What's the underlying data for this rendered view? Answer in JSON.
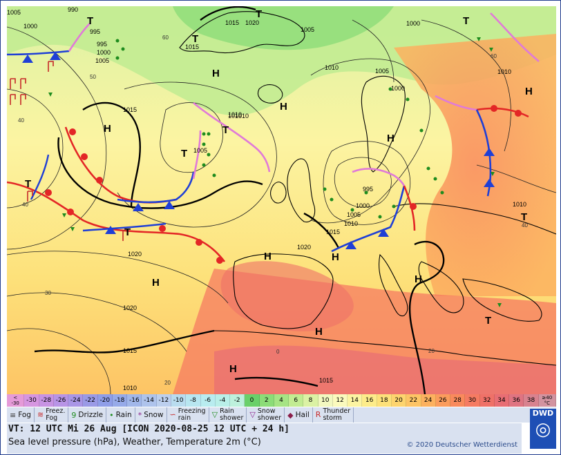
{
  "map": {
    "isobar_labels": [
      {
        "text": "1005"
      },
      {
        "text": "1000"
      },
      {
        "text": "995"
      },
      {
        "text": "990"
      },
      {
        "text": "995"
      },
      {
        "text": "1000"
      },
      {
        "text": "1005"
      },
      {
        "text": "1015"
      },
      {
        "text": "1020"
      },
      {
        "text": "1015"
      },
      {
        "text": "1005"
      },
      {
        "text": "1010"
      },
      {
        "text": "1005"
      },
      {
        "text": "1000"
      },
      {
        "text": "1010"
      },
      {
        "text": "1015"
      },
      {
        "text": "1010"
      },
      {
        "text": "1005"
      },
      {
        "text": "995"
      },
      {
        "text": "1000"
      },
      {
        "text": "1005"
      },
      {
        "text": "1010"
      },
      {
        "text": "1015"
      },
      {
        "text": "1020"
      },
      {
        "text": "1020"
      },
      {
        "text": "1020"
      },
      {
        "text": "1015"
      },
      {
        "text": "1010"
      },
      {
        "text": "1015"
      },
      {
        "text": "1010"
      },
      {
        "text": "1000"
      },
      {
        "text": "1010"
      },
      {
        "text": "1010"
      }
    ],
    "latlon_labels": [
      {
        "text": "40"
      },
      {
        "text": "50"
      },
      {
        "text": "60"
      },
      {
        "text": "40"
      },
      {
        "text": "30"
      },
      {
        "text": "20"
      },
      {
        "text": "0"
      },
      {
        "text": "20"
      },
      {
        "text": "40"
      },
      {
        "text": "60"
      }
    ],
    "high_labels": [
      "H",
      "H",
      "H",
      "H",
      "H",
      "H",
      "H",
      "H",
      "H",
      "H",
      "H"
    ],
    "low_labels": [
      "T",
      "T",
      "T",
      "T",
      "T",
      "T",
      "T",
      "T",
      "T",
      "T"
    ]
  },
  "legend": {
    "temperature_scale": [
      {
        "label": "<\n-30",
        "color": "#e59ad8"
      },
      {
        "label": "-30",
        "color": "#d696e0"
      },
      {
        "label": "-28",
        "color": "#c793e3"
      },
      {
        "label": "-26",
        "color": "#b894e6"
      },
      {
        "label": "-24",
        "color": "#a996e6"
      },
      {
        "label": "-22",
        "color": "#9a9ae6"
      },
      {
        "label": "-20",
        "color": "#8f9ee8"
      },
      {
        "label": "-18",
        "color": "#96aae9"
      },
      {
        "label": "-16",
        "color": "#a1b7ea"
      },
      {
        "label": "-14",
        "color": "#aec3ec"
      },
      {
        "label": "-12",
        "color": "#bccfee"
      },
      {
        "label": "-10",
        "color": "#b9dcef"
      },
      {
        "label": "-8",
        "color": "#b8e6f0"
      },
      {
        "label": "-6",
        "color": "#b8ecef"
      },
      {
        "label": "-4",
        "color": "#b9efe8"
      },
      {
        "label": "-2",
        "color": "#bdf0dc"
      },
      {
        "label": "0",
        "color": "#6ad06a"
      },
      {
        "label": "2",
        "color": "#8cdc78"
      },
      {
        "label": "4",
        "color": "#a6e484"
      },
      {
        "label": "6",
        "color": "#c2ec92"
      },
      {
        "label": "8",
        "color": "#dbf2a4"
      },
      {
        "label": "10",
        "color": "#f2f8c0"
      },
      {
        "label": "12",
        "color": "#fbfabd"
      },
      {
        "label": "14",
        "color": "#fcf4a2"
      },
      {
        "label": "16",
        "color": "#fdec8a"
      },
      {
        "label": "18",
        "color": "#fde17a"
      },
      {
        "label": "20",
        "color": "#fdd46e"
      },
      {
        "label": "22",
        "color": "#fdc465"
      },
      {
        "label": "24",
        "color": "#fcb15f"
      },
      {
        "label": "26",
        "color": "#fb9c5c"
      },
      {
        "label": "28",
        "color": "#f98a5c"
      },
      {
        "label": "30",
        "color": "#f57b62"
      },
      {
        "label": "32",
        "color": "#ef7168"
      },
      {
        "label": "34",
        "color": "#e86e74"
      },
      {
        "label": "36",
        "color": "#df7482"
      },
      {
        "label": "38",
        "color": "#d8828f"
      },
      {
        "label": "≥40\n°C",
        "color": "#d293a0"
      }
    ],
    "weather_keys": [
      {
        "symbol": "≡",
        "label": "Fog",
        "color": "#333333"
      },
      {
        "symbol": "≋",
        "label": "Freez.\nFog",
        "color": "#c62828"
      },
      {
        "symbol": "9",
        "label": "Drizzle",
        "color": "#1e8c1e"
      },
      {
        "symbol": "•",
        "label": "Rain",
        "color": "#1e8c1e"
      },
      {
        "symbol": "*",
        "label": "Snow",
        "color": "#8a1e8a"
      },
      {
        "symbol": "∽",
        "label": "Freezing\nrain",
        "color": "#c62828"
      },
      {
        "symbol": "▽",
        "label": "Rain\nshower",
        "color": "#1e8c1e"
      },
      {
        "symbol": "▽",
        "label": "Snow\nshower",
        "color": "#8a1e8a"
      },
      {
        "symbol": "◆",
        "label": "Hail",
        "color": "#8a1e4a"
      },
      {
        "symbol": "R",
        "label": "Thunder\nstorm",
        "color": "#c62828"
      }
    ]
  },
  "info": {
    "valid_time": "VT: 12 UTC Mi  26 Aug [ICON 2020-08-25  12 UTC + 24 h]",
    "description": "Sea level pressure (hPa), Weather, Temperature 2m (°C)",
    "copyright": "© 2020 Deutscher Wetterdienst",
    "logo_text": "DWD"
  },
  "colors": {
    "frame": "#1e3b8c",
    "warm_front": "#e32626",
    "cold_front": "#1f3fd6",
    "occluded_front": "#e07ad8",
    "panel": "#d9e1f0"
  }
}
